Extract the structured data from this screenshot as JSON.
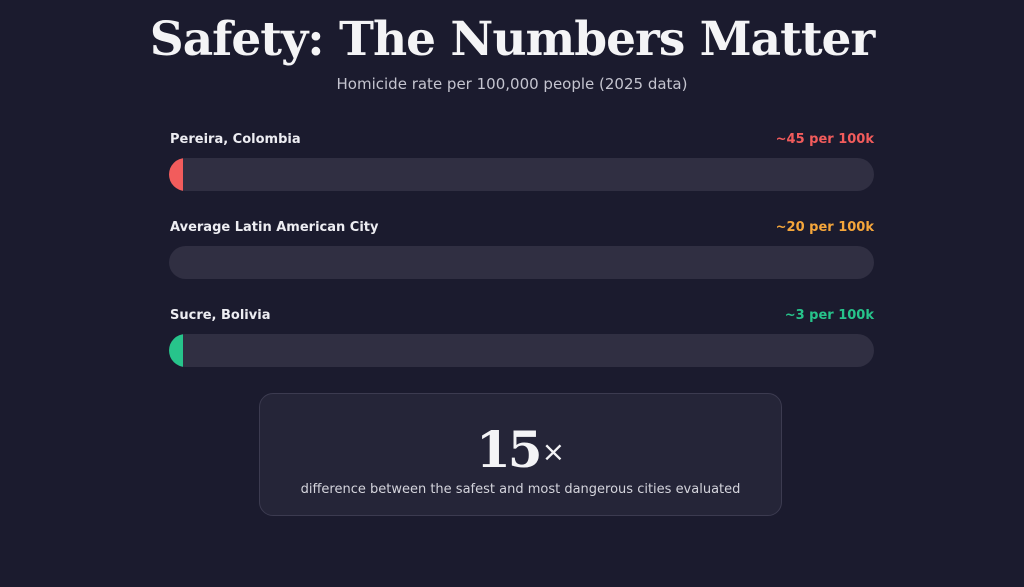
{
  "header": {
    "title": "Safety: The Numbers Matter",
    "subtitle": "Homicide rate per 100,000 people (2025 data)"
  },
  "chart_data": {
    "type": "bar",
    "title": "Safety: The Numbers Matter",
    "subtitle": "Homicide rate per 100,000 people (2025 data)",
    "categories": [
      "Pereira, Colombia",
      "Average Latin American City",
      "Sucre, Bolivia"
    ],
    "values": [
      45,
      20,
      3
    ],
    "value_labels": [
      "~45 per 100k",
      "~20 per 100k",
      "~3 per 100k"
    ],
    "colors": [
      "#f25c5c",
      "#f5a63b",
      "#27c48b"
    ],
    "fill_fraction": [
      0.02,
      0.0,
      0.02
    ],
    "orientation": "horizontal"
  },
  "stat": {
    "number": "15",
    "suffix": "×",
    "caption": "difference between the safest and most dangerous cities evaluated"
  }
}
